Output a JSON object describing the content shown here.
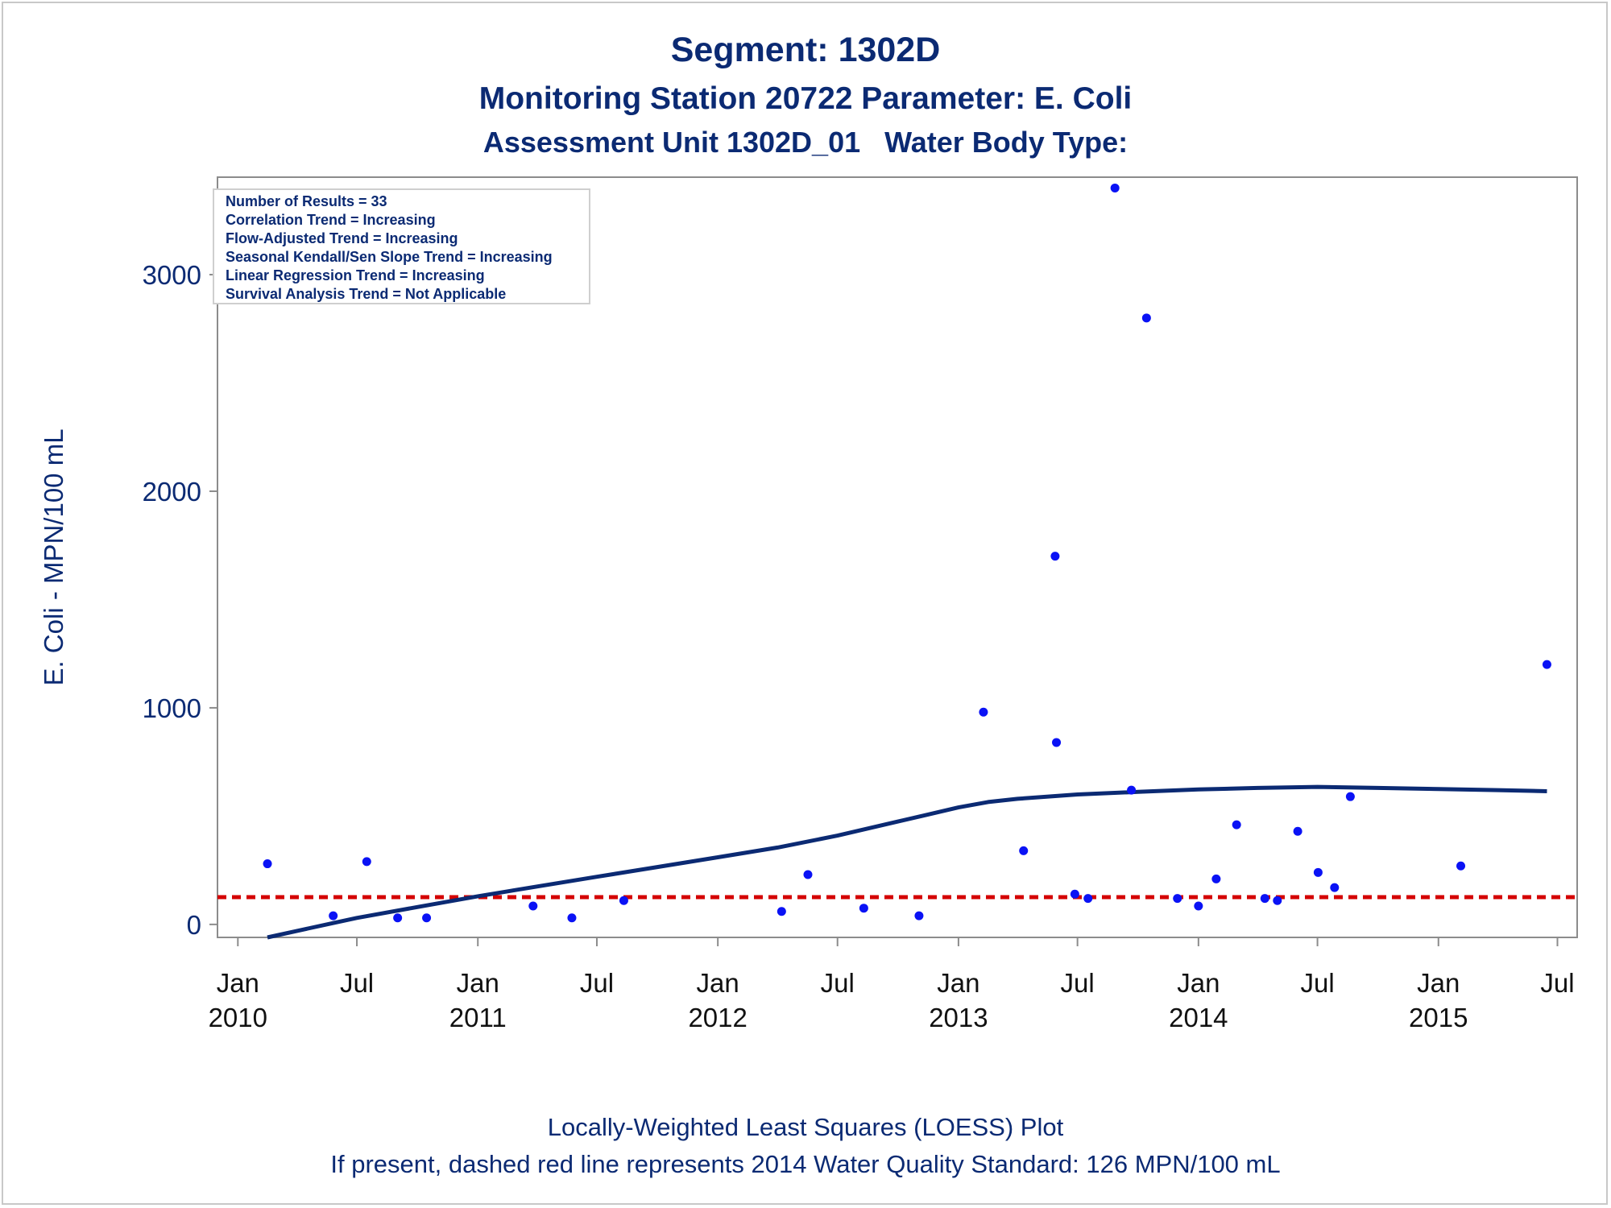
{
  "title": "Segment: 1302D",
  "subtitle1": "Monitoring Station 20722 Parameter: E. Coli",
  "subtitle2": "Assessment Unit 1302D_01   Water Body Type:",
  "footnote1": "Locally-Weighted Least Squares (LOESS) Plot",
  "footnote2": "If present, dashed red line represents 2014 Water Quality Standard: 126 MPN/100 mL",
  "colors": {
    "text": "#0b2a73",
    "points": "#0a12f5",
    "loess": "#0b2a73",
    "standard": "#d40000",
    "axis": "#8c8c8c"
  },
  "legend_box": {
    "lines": [
      "Number of Results = 33",
      "Correlation Trend = Increasing",
      "Flow-Adjusted Trend = Increasing",
      "Seasonal Kendall/Sen Slope Trend = Increasing",
      "Linear Regression Trend = Increasing",
      "Survival Analysis Trend = Not Applicable"
    ]
  },
  "chart_data": {
    "type": "scatter",
    "ylabel": "E. Coli - MPN/100 mL",
    "xlabel": "",
    "xlim": [
      "2009-12-01",
      "2015-07-31"
    ],
    "ylim": [
      -60,
      3450
    ],
    "yticks": [
      0,
      1000,
      2000,
      3000
    ],
    "xticks": [
      {
        "date": "2010-01-01",
        "label1": "Jan",
        "label2": "2010"
      },
      {
        "date": "2010-07-01",
        "label1": "Jul",
        "label2": ""
      },
      {
        "date": "2011-01-01",
        "label1": "Jan",
        "label2": "2011"
      },
      {
        "date": "2011-07-01",
        "label1": "Jul",
        "label2": ""
      },
      {
        "date": "2012-01-01",
        "label1": "Jan",
        "label2": "2012"
      },
      {
        "date": "2012-07-01",
        "label1": "Jul",
        "label2": ""
      },
      {
        "date": "2013-01-01",
        "label1": "Jan",
        "label2": "2013"
      },
      {
        "date": "2013-07-01",
        "label1": "Jul",
        "label2": ""
      },
      {
        "date": "2014-01-01",
        "label1": "Jan",
        "label2": "2014"
      },
      {
        "date": "2014-07-01",
        "label1": "Jul",
        "label2": ""
      },
      {
        "date": "2015-01-01",
        "label1": "Jan",
        "label2": "2015"
      },
      {
        "date": "2015-07-01",
        "label1": "Jul",
        "label2": ""
      }
    ],
    "series": [
      {
        "kind": "points",
        "points": [
          {
            "x": "2010-02-15",
            "y": 280
          },
          {
            "x": "2010-05-26",
            "y": 40
          },
          {
            "x": "2010-07-16",
            "y": 290
          },
          {
            "x": "2010-09-01",
            "y": 30
          },
          {
            "x": "2010-10-15",
            "y": 30
          },
          {
            "x": "2011-03-26",
            "y": 85
          },
          {
            "x": "2011-05-24",
            "y": 30
          },
          {
            "x": "2011-08-11",
            "y": 110
          },
          {
            "x": "2012-04-07",
            "y": 60
          },
          {
            "x": "2012-05-17",
            "y": 230
          },
          {
            "x": "2012-08-10",
            "y": 75
          },
          {
            "x": "2012-11-02",
            "y": 40
          },
          {
            "x": "2013-02-08",
            "y": 980
          },
          {
            "x": "2013-04-10",
            "y": 340
          },
          {
            "x": "2013-05-28",
            "y": 1700
          },
          {
            "x": "2013-05-30",
            "y": 840
          },
          {
            "x": "2013-06-27",
            "y": 140
          },
          {
            "x": "2013-07-17",
            "y": 120
          },
          {
            "x": "2013-08-27",
            "y": 3400
          },
          {
            "x": "2013-09-21",
            "y": 620
          },
          {
            "x": "2013-10-14",
            "y": 2800
          },
          {
            "x": "2013-11-30",
            "y": 120
          },
          {
            "x": "2014-01-01",
            "y": 85
          },
          {
            "x": "2014-01-28",
            "y": 210
          },
          {
            "x": "2014-02-28",
            "y": 460
          },
          {
            "x": "2014-04-12",
            "y": 120
          },
          {
            "x": "2014-05-01",
            "y": 110
          },
          {
            "x": "2014-06-01",
            "y": 430
          },
          {
            "x": "2014-07-02",
            "y": 240
          },
          {
            "x": "2014-07-27",
            "y": 170
          },
          {
            "x": "2014-08-20",
            "y": 590
          },
          {
            "x": "2015-02-04",
            "y": 270
          },
          {
            "x": "2015-06-15",
            "y": 1200
          }
        ]
      },
      {
        "kind": "loess",
        "points": [
          {
            "x": "2010-02-15",
            "y": -60
          },
          {
            "x": "2010-04-01",
            "y": -30
          },
          {
            "x": "2010-07-01",
            "y": 30
          },
          {
            "x": "2010-10-01",
            "y": 80
          },
          {
            "x": "2011-01-01",
            "y": 130
          },
          {
            "x": "2011-04-01",
            "y": 175
          },
          {
            "x": "2011-07-01",
            "y": 220
          },
          {
            "x": "2011-10-01",
            "y": 265
          },
          {
            "x": "2012-01-01",
            "y": 310
          },
          {
            "x": "2012-04-01",
            "y": 355
          },
          {
            "x": "2012-07-01",
            "y": 410
          },
          {
            "x": "2012-10-01",
            "y": 475
          },
          {
            "x": "2013-01-01",
            "y": 540
          },
          {
            "x": "2013-02-15",
            "y": 565
          },
          {
            "x": "2013-04-01",
            "y": 580
          },
          {
            "x": "2013-07-01",
            "y": 600
          },
          {
            "x": "2013-10-01",
            "y": 612
          },
          {
            "x": "2014-01-01",
            "y": 623
          },
          {
            "x": "2014-04-01",
            "y": 630
          },
          {
            "x": "2014-07-01",
            "y": 635
          },
          {
            "x": "2014-10-01",
            "y": 630
          },
          {
            "x": "2015-01-01",
            "y": 625
          },
          {
            "x": "2015-04-01",
            "y": 620
          },
          {
            "x": "2015-06-15",
            "y": 615
          }
        ]
      }
    ],
    "reference_line": {
      "y": 126,
      "style": "dashed"
    },
    "grid": false,
    "legend": "top-left"
  }
}
